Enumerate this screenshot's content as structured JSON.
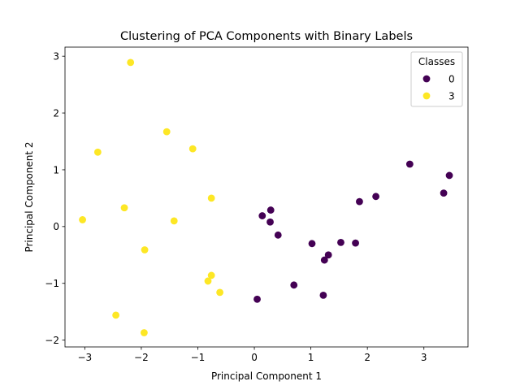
{
  "chart_data": {
    "type": "scatter",
    "title": "Clustering of PCA Components with Binary Labels",
    "xlabel": "Principal Component 1",
    "ylabel": "Principal Component 2",
    "xlim": [
      -3.35,
      3.78
    ],
    "ylim": [
      -2.12,
      3.16
    ],
    "xticks": [
      -3,
      -2,
      -1,
      0,
      1,
      2,
      3
    ],
    "yticks": [
      -2,
      -1,
      0,
      1,
      2,
      3
    ],
    "grid": false,
    "legend": {
      "title": "Classes",
      "placement": "top-right"
    },
    "series": [
      {
        "name": "0",
        "color": "#440154",
        "points": [
          [
            2.75,
            1.1
          ],
          [
            3.45,
            0.9
          ],
          [
            3.35,
            0.59
          ],
          [
            2.15,
            0.53
          ],
          [
            1.86,
            0.44
          ],
          [
            0.29,
            0.29
          ],
          [
            0.14,
            0.19
          ],
          [
            0.28,
            0.08
          ],
          [
            0.42,
            -0.15
          ],
          [
            1.02,
            -0.3
          ],
          [
            1.53,
            -0.28
          ],
          [
            1.79,
            -0.29
          ],
          [
            1.31,
            -0.5
          ],
          [
            1.24,
            -0.59
          ],
          [
            0.7,
            -1.03
          ],
          [
            1.22,
            -1.21
          ],
          [
            0.05,
            -1.28
          ]
        ]
      },
      {
        "name": "3",
        "color": "#fde725",
        "points": [
          [
            -2.19,
            2.89
          ],
          [
            -1.55,
            1.67
          ],
          [
            -2.77,
            1.31
          ],
          [
            -1.09,
            1.37
          ],
          [
            -0.76,
            0.5
          ],
          [
            -2.3,
            0.33
          ],
          [
            -3.04,
            0.12
          ],
          [
            -1.42,
            0.1
          ],
          [
            -1.94,
            -0.41
          ],
          [
            -0.76,
            -0.86
          ],
          [
            -0.82,
            -0.96
          ],
          [
            -0.61,
            -1.16
          ],
          [
            -2.45,
            -1.56
          ],
          [
            -1.95,
            -1.87
          ]
        ]
      }
    ]
  }
}
